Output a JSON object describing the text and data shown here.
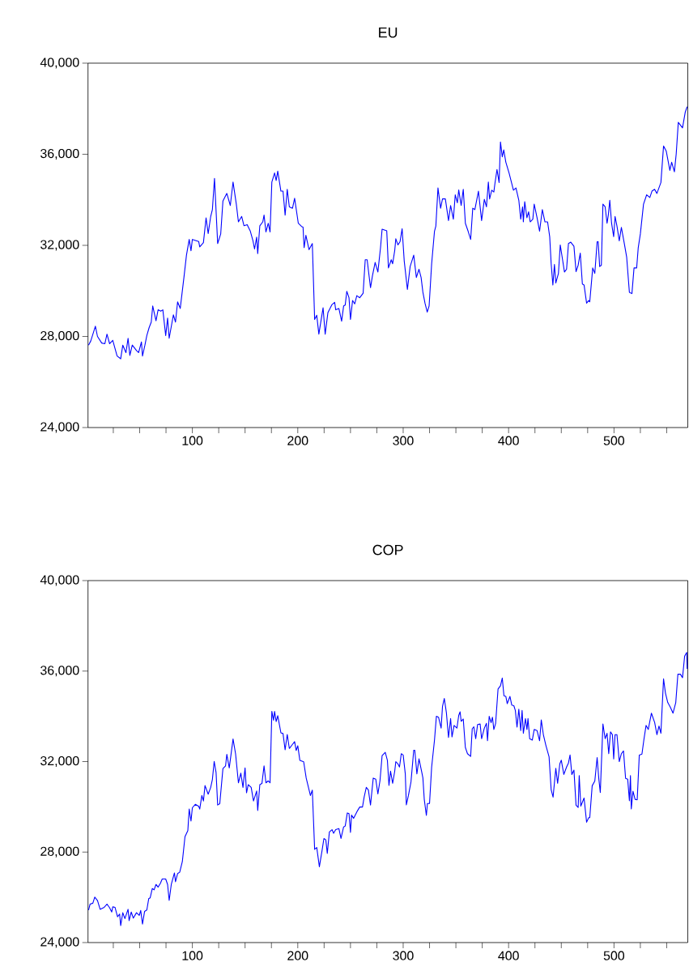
{
  "chart_data": [
    {
      "type": "line",
      "title": "EU",
      "x": [
        1.5,
        3.6,
        8,
        10,
        14,
        17,
        19,
        21.5,
        24.5,
        28.6,
        32,
        34,
        37,
        39,
        40.7,
        43,
        47,
        49,
        51.7,
        52.7,
        55,
        56.8,
        59,
        61,
        62.4,
        65.5,
        67.5,
        70,
        72,
        74.7,
        76.5,
        78,
        82,
        84,
        86,
        88.5,
        92,
        94.4,
        97,
        98.7,
        100,
        106,
        107,
        110.5,
        113,
        115,
        117.4,
        119,
        121,
        124,
        126.9,
        129,
        132.7,
        136,
        138.6,
        141.7,
        143.7,
        146.8,
        149,
        152,
        155,
        157.5,
        159,
        161,
        162,
        164,
        166.8,
        168,
        169.8,
        172,
        173.7,
        175.4,
        178,
        179.5,
        181,
        184,
        186,
        188,
        190,
        192,
        195,
        197,
        200.5,
        203.6,
        205,
        206,
        207.7,
        210.7,
        213.8,
        216,
        218,
        220,
        224,
        226,
        228.6,
        232.5,
        235,
        236,
        239,
        241.6,
        243.5,
        245,
        246.5,
        248.6,
        250,
        252,
        254,
        256,
        258.8,
        262,
        264,
        265.8,
        269,
        270.8,
        273.4,
        276,
        278.5,
        280,
        284.4,
        286,
        288.7,
        290,
        292,
        293,
        295,
        297,
        299,
        301,
        304,
        306.6,
        310,
        312.5,
        315,
        317,
        318.7,
        320.7,
        322.8,
        324.6,
        327,
        329.7,
        331,
        333,
        335.5,
        337.3,
        340,
        343,
        345,
        347.6,
        349.4,
        351.4,
        352.7,
        355,
        357,
        359,
        361.6,
        364,
        366,
        368,
        371.4,
        374.4,
        377,
        379,
        380.8,
        382,
        384,
        386,
        387,
        389,
        391,
        392.3,
        394,
        395.4,
        397.4,
        400.5,
        404.6,
        407,
        409.7,
        411.5,
        413.3,
        414,
        415.3,
        417.4,
        419,
        420.5,
        423,
        424.3,
        427,
        429.4,
        432,
        434.5,
        437,
        439,
        440.4,
        442,
        443.5,
        444.8,
        447.3,
        449,
        451,
        453,
        455,
        456.8,
        459,
        462,
        464,
        466,
        468,
        470,
        471.6,
        474,
        476,
        477,
        479.8,
        481.8,
        484,
        485,
        486.4,
        488,
        489.5,
        491.6,
        493.4,
        494.6,
        496,
        497.7,
        499.7,
        501,
        502.8,
        505,
        507,
        510,
        512,
        514.6,
        517,
        519,
        521.5,
        523,
        525,
        528,
        531,
        534,
        536,
        538.5,
        540.7,
        544.5,
        547,
        549.6,
        553,
        554.7,
        557.3,
        559,
        561,
        565,
        567.6,
        569.4
      ],
      "series": [
        {
          "color": "#0000ff",
          "values": [
            27620,
            27800,
            28450,
            28000,
            27710,
            27680,
            28100,
            27680,
            27830,
            27140,
            27020,
            27620,
            27290,
            27920,
            27170,
            27620,
            27380,
            27290,
            27760,
            27140,
            27620,
            28040,
            28390,
            28630,
            29340,
            28690,
            29170,
            29110,
            29170,
            28040,
            28810,
            27920,
            28950,
            28630,
            29520,
            29230,
            30590,
            31570,
            32260,
            31760,
            32260,
            32170,
            31930,
            32120,
            33210,
            32520,
            33270,
            33570,
            34940,
            32080,
            32500,
            33950,
            34280,
            33750,
            34780,
            33810,
            33030,
            33270,
            32860,
            32910,
            32620,
            32200,
            31840,
            32360,
            31640,
            32860,
            33030,
            33330,
            32590,
            32970,
            32590,
            34780,
            35180,
            34850,
            35260,
            34380,
            34380,
            33330,
            34460,
            33690,
            33630,
            34070,
            32970,
            32830,
            32800,
            31900,
            32440,
            31810,
            32080,
            28750,
            28930,
            28100,
            29260,
            28100,
            29050,
            29400,
            29500,
            29170,
            29230,
            28670,
            29340,
            29380,
            29980,
            29700,
            28750,
            29580,
            29430,
            29790,
            29700,
            29900,
            31370,
            31370,
            30140,
            30650,
            31250,
            30830,
            31900,
            32710,
            32640,
            31010,
            31370,
            31190,
            31780,
            32290,
            32020,
            32160,
            32730,
            31310,
            30060,
            31070,
            31570,
            30590,
            30950,
            30590,
            29940,
            29460,
            29070,
            29340,
            31190,
            32620,
            32850,
            34520,
            33630,
            34040,
            34040,
            33090,
            33750,
            33150,
            34220,
            33870,
            34430,
            33750,
            34460,
            32970,
            32620,
            32260,
            33630,
            33570,
            34380,
            33090,
            34020,
            33690,
            34780,
            34040,
            34420,
            34340,
            34700,
            35330,
            34760,
            36540,
            35890,
            36190,
            35650,
            35170,
            34420,
            34520,
            33980,
            33150,
            33690,
            33030,
            33920,
            33210,
            33470,
            33030,
            33150,
            33810,
            33210,
            32620,
            33570,
            33030,
            33030,
            32380,
            31190,
            30260,
            31160,
            30350,
            30770,
            32020,
            31430,
            30830,
            30950,
            32080,
            32140,
            31960,
            30850,
            31130,
            31660,
            30300,
            30260,
            29460,
            29580,
            29520,
            31010,
            30770,
            32160,
            32160,
            31070,
            31130,
            33810,
            33690,
            32970,
            33330,
            33980,
            32970,
            32380,
            33270,
            32850,
            32200,
            32790,
            32020,
            31490,
            29940,
            29880,
            31010,
            31010,
            31900,
            32500,
            33810,
            34220,
            34100,
            34380,
            34460,
            34280,
            34760,
            36360,
            36130,
            35290,
            35650,
            35230,
            36010,
            37400,
            37160,
            37850,
            38090
          ]
        }
      ],
      "xlim": [
        1,
        570
      ],
      "xticks": [
        {
          "value": 25,
          "label": null
        },
        {
          "value": 50,
          "label": null
        },
        {
          "value": 75,
          "label": null
        },
        100,
        {
          "value": 125,
          "label": null
        },
        {
          "value": 150,
          "label": null
        },
        {
          "value": 175,
          "label": null
        },
        200,
        {
          "value": 225,
          "label": null
        },
        {
          "value": 250,
          "label": null
        },
        {
          "value": 275,
          "label": null
        },
        300,
        {
          "value": 325,
          "label": null
        },
        {
          "value": 350,
          "label": null
        },
        {
          "value": 375,
          "label": null
        },
        400,
        {
          "value": 425,
          "label": null
        },
        {
          "value": 450,
          "label": null
        },
        {
          "value": 475,
          "label": null
        },
        500,
        {
          "value": 525,
          "label": null
        },
        {
          "value": 550,
          "label": null
        }
      ],
      "ylim": [
        24000,
        40000
      ],
      "yticks": [
        {
          "value": 24000,
          "label": "24,000"
        },
        {
          "value": 28000,
          "label": "28,000"
        },
        {
          "value": 32000,
          "label": "32,000"
        },
        {
          "value": 36000,
          "label": "36,000"
        },
        {
          "value": 40000,
          "label": "40,000"
        }
      ]
    },
    {
      "type": "line",
      "title": "COP",
      "x": [
        1.5,
        3,
        5.6,
        7.4,
        10,
        12.5,
        16.4,
        19,
        21.5,
        23.5,
        24.5,
        26.6,
        29,
        31,
        32,
        34,
        36,
        39,
        40,
        42,
        44,
        47,
        49.6,
        51,
        52.7,
        54.7,
        56.8,
        58.6,
        60,
        62,
        63.7,
        65.5,
        67.5,
        69.6,
        71.4,
        74.7,
        76.5,
        78,
        80,
        83,
        84,
        86,
        88,
        90.5,
        93,
        95.7,
        97,
        98.7,
        100,
        102.8,
        106,
        107,
        109,
        110.5,
        112,
        115,
        117.4,
        119,
        120.7,
        122.5,
        124,
        126,
        129,
        131.5,
        132.7,
        135,
        138.6,
        141,
        143.7,
        146,
        148,
        150,
        151.4,
        153,
        155.8,
        158,
        161,
        162,
        164,
        166,
        168,
        169.8,
        172,
        173.7,
        175.4,
        177,
        178,
        179.5,
        181,
        184,
        186,
        188,
        190,
        192,
        195,
        197,
        198.5,
        200,
        202,
        205.6,
        208,
        210,
        212,
        213.8,
        216,
        218,
        220.5,
        223,
        224.8,
        226.6,
        228,
        230,
        232.5,
        234,
        236,
        239,
        241,
        243.5,
        245,
        247,
        248.6,
        250,
        251,
        253,
        256.8,
        258.8,
        261.4,
        263,
        265,
        267,
        269,
        271.6,
        274,
        276,
        278,
        280,
        283,
        285,
        286.5,
        288,
        290,
        292,
        293,
        295,
        296.5,
        298.2,
        300,
        302,
        303,
        305,
        307.4,
        310,
        311,
        313,
        315,
        317.6,
        318.7,
        320,
        322,
        323,
        325,
        327,
        329.7,
        331.5,
        333.5,
        336,
        337.3,
        339,
        341,
        343,
        345,
        346.3,
        348.3,
        351,
        352.7,
        354,
        355,
        357,
        359,
        361,
        364,
        365.5,
        367,
        368.8,
        370.6,
        373,
        374.4,
        377,
        379,
        380,
        381.6,
        383.4,
        384.7,
        386,
        387.7,
        390,
        392.3,
        394,
        395.6,
        397.4,
        398.7,
        401.3,
        403,
        405,
        406.4,
        408,
        409.7,
        411.5,
        412.8,
        414,
        416,
        417.4,
        418.4,
        420,
        422.5,
        424.3,
        427,
        429.4,
        431,
        433,
        435.3,
        438.4,
        440.4,
        442.2,
        443.5,
        444.8,
        446.5,
        448.6,
        450,
        452.4,
        455,
        456.8,
        458.3,
        460,
        462,
        464,
        466,
        467,
        468.5,
        471.6,
        474,
        476,
        477,
        479.3,
        481.8,
        484,
        485.6,
        487,
        489.5,
        491.6,
        493.4,
        495,
        496.7,
        498.5,
        499.7,
        501,
        502.8,
        505,
        507,
        509,
        511,
        513,
        514.6,
        515.6,
        516.4,
        518,
        520,
        522,
        524,
        526.5,
        528.3,
        530.4,
        532.5,
        535.5,
        538.6,
        540.7,
        542.7,
        544.5,
        547,
        548.8,
        551,
        553.5,
        556,
        558.6,
        560.6,
        563,
        565,
        567,
        569,
        569.4
      ],
      "series": [
        {
          "color": "#0000ff",
          "values": [
            25440,
            25700,
            25740,
            26010,
            25860,
            25470,
            25560,
            25700,
            25540,
            25350,
            25580,
            25560,
            25140,
            25260,
            24750,
            25320,
            25060,
            25470,
            24970,
            25350,
            25080,
            25320,
            25200,
            25420,
            24820,
            25380,
            25440,
            25940,
            25980,
            26390,
            26330,
            26570,
            26450,
            26610,
            26810,
            26810,
            26570,
            25860,
            26570,
            27080,
            26690,
            27050,
            27110,
            27580,
            28680,
            28950,
            29900,
            29370,
            29960,
            30110,
            30020,
            29900,
            30500,
            30260,
            30940,
            30560,
            30860,
            31210,
            32010,
            31510,
            30080,
            30140,
            31690,
            31810,
            32320,
            31720,
            33000,
            32340,
            31060,
            31490,
            30860,
            31720,
            30620,
            30980,
            30860,
            30260,
            30700,
            29840,
            30980,
            31030,
            31810,
            31060,
            31150,
            31060,
            34220,
            33830,
            34220,
            33770,
            34030,
            33270,
            33240,
            32520,
            33200,
            32580,
            32760,
            32880,
            32490,
            32700,
            32050,
            31990,
            31270,
            30890,
            30500,
            30740,
            28120,
            28200,
            27350,
            28060,
            28600,
            28540,
            27940,
            28890,
            28990,
            28830,
            28990,
            29040,
            28600,
            29110,
            29150,
            29730,
            29700,
            28870,
            29640,
            29490,
            29840,
            29990,
            29990,
            30440,
            30860,
            30740,
            30080,
            31270,
            31220,
            30570,
            31160,
            32260,
            32410,
            32060,
            30950,
            31580,
            31040,
            31580,
            32000,
            31900,
            31760,
            32350,
            32290,
            31460,
            30090,
            30510,
            31100,
            32500,
            32500,
            31460,
            32120,
            31540,
            31280,
            30330,
            29620,
            30150,
            30150,
            31760,
            32950,
            34000,
            33960,
            33480,
            34440,
            34790,
            34160,
            33070,
            33900,
            33090,
            33600,
            33480,
            34040,
            34200,
            33780,
            33880,
            32620,
            32350,
            32230,
            33450,
            33540,
            33010,
            33640,
            33660,
            33010,
            33480,
            33690,
            32920,
            34000,
            33720,
            33960,
            33420,
            33690,
            35210,
            35350,
            35690,
            34910,
            34880,
            34560,
            34880,
            34500,
            34470,
            34260,
            33520,
            34320,
            33370,
            34260,
            33250,
            33900,
            33420,
            33900,
            33010,
            32950,
            33420,
            33370,
            32920,
            33840,
            33190,
            32730,
            32210,
            30750,
            30430,
            31070,
            31700,
            31040,
            31900,
            32060,
            31430,
            31760,
            31940,
            32290,
            31430,
            31620,
            30070,
            29970,
            31380,
            30030,
            30390,
            29320,
            29520,
            29520,
            30930,
            31140,
            32180,
            31230,
            30630,
            33660,
            33010,
            33250,
            32350,
            33310,
            33190,
            32120,
            33190,
            33190,
            32000,
            32350,
            32470,
            31260,
            31220,
            30270,
            31380,
            29910,
            30690,
            30330,
            30310,
            32290,
            32330,
            32950,
            33600,
            33420,
            34140,
            33720,
            33190,
            33570,
            33250,
            35660,
            35030,
            34610,
            34400,
            34140,
            34610,
            35860,
            35860,
            35710,
            36660,
            36820,
            36100
          ]
        }
      ],
      "xlim": [
        1,
        570
      ],
      "xticks": [
        {
          "value": 25,
          "label": null
        },
        {
          "value": 50,
          "label": null
        },
        {
          "value": 75,
          "label": null
        },
        100,
        {
          "value": 125,
          "label": null
        },
        {
          "value": 150,
          "label": null
        },
        {
          "value": 175,
          "label": null
        },
        200,
        {
          "value": 225,
          "label": null
        },
        {
          "value": 250,
          "label": null
        },
        {
          "value": 275,
          "label": null
        },
        300,
        {
          "value": 325,
          "label": null
        },
        {
          "value": 350,
          "label": null
        },
        {
          "value": 375,
          "label": null
        },
        400,
        {
          "value": 425,
          "label": null
        },
        {
          "value": 450,
          "label": null
        },
        {
          "value": 475,
          "label": null
        },
        500,
        {
          "value": 525,
          "label": null
        },
        {
          "value": 550,
          "label": null
        }
      ],
      "ylim": [
        24000,
        40000
      ],
      "yticks": [
        {
          "value": 24000,
          "label": "24,000"
        },
        {
          "value": 28000,
          "label": "28,000"
        },
        {
          "value": 32000,
          "label": "32,000"
        },
        {
          "value": 36000,
          "label": "36,000"
        },
        {
          "value": 40000,
          "label": "40,000"
        }
      ]
    }
  ]
}
